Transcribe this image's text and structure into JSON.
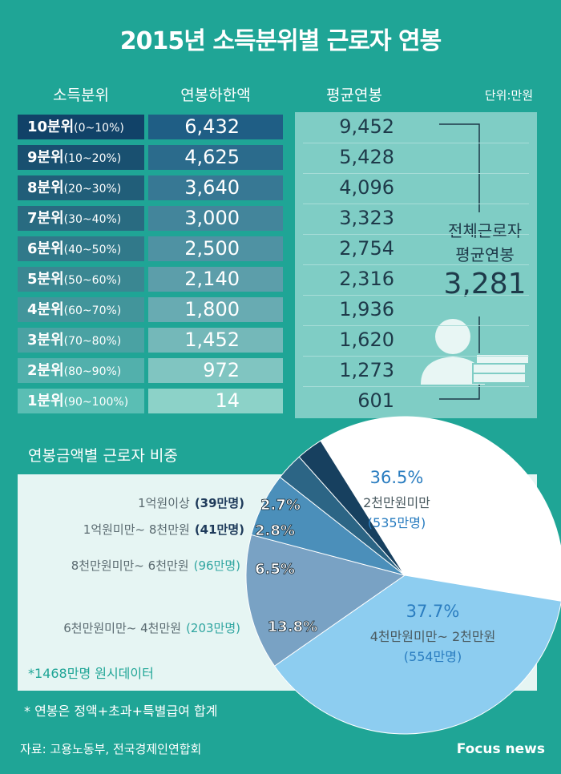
{
  "header": {
    "title": "2015년 소득분위별 근로자 연봉"
  },
  "table": {
    "columns": [
      "소득분위",
      "연봉하한액",
      "평균연봉"
    ],
    "unit": "단위:만원",
    "rows": [
      [
        "10분위",
        "(0~10%)",
        "6,432",
        "9,452"
      ],
      [
        "9분위",
        "(10~20%)",
        "4,625",
        "5,428"
      ],
      [
        "8분위",
        "(20~30%)",
        "3,640",
        "4,096"
      ],
      [
        "7분위",
        "(30~40%)",
        "3,000",
        "3,323"
      ],
      [
        "6분위",
        "(40~50%)",
        "2,500",
        "2,754"
      ],
      [
        "5분위",
        "(50~60%)",
        "2,140",
        "2,316"
      ],
      [
        "4분위",
        "(60~70%)",
        "1,800",
        "1,936"
      ],
      [
        "3분위",
        "(70~80%)",
        "1,452",
        "1,620"
      ],
      [
        "2분위",
        "(80~90%)",
        "972",
        "1,273"
      ],
      [
        "1분위",
        "(90~100%)",
        "14",
        "601"
      ]
    ]
  },
  "summary": {
    "line1": "전체근로자",
    "line2": "평균연봉",
    "value": "3,281"
  },
  "chart_data": {
    "type": "pie",
    "title": "연봉금액별 근로자 비중",
    "categories": [
      "2천만원미만",
      "4천만원미만~ 2천만원",
      "6천만원미만~ 4천만원",
      "8천만원미만~ 6천만원",
      "1억원미만~ 8천만원",
      "1억원이상"
    ],
    "values": [
      36.5,
      37.7,
      13.8,
      6.5,
      2.8,
      2.7
    ],
    "value_labels": [
      "36.5%",
      "37.7%",
      "13.8%",
      "6.5%",
      "2.8%",
      "2.7%"
    ],
    "counts": [
      "(535만명)",
      "(554만명)",
      "(203만명)",
      "(96만명)",
      "(41만명)",
      "(39만명)"
    ],
    "colors": [
      "#ffffff",
      "#8dcdf0",
      "#79a2c4",
      "#4b8fba",
      "#2c6585",
      "#17405f"
    ],
    "note": "*1468만명 원시데이터"
  },
  "footer": {
    "note": "* 연봉은 정액+초과+특별급여 합계",
    "source": "자료: 고용노동부, 전국경제인연합회",
    "brand": "Focus news"
  }
}
